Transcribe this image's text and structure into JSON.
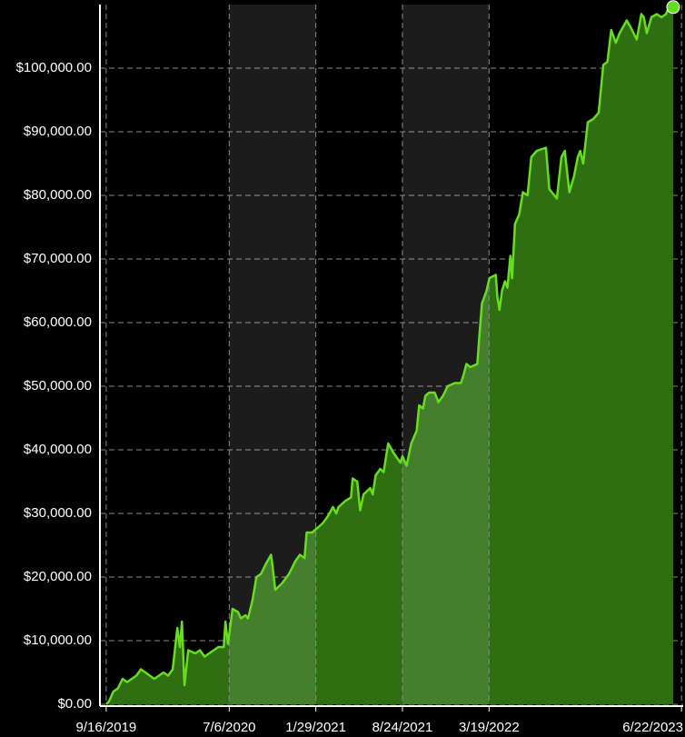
{
  "chart_data": {
    "type": "area",
    "x": [
      "9/16/2019",
      "9/23/2019",
      "10/3/2019",
      "10/14/2019",
      "10/25/2019",
      "11/5/2019",
      "11/16/2019",
      "11/27/2019",
      "12/8/2019",
      "12/19/2019",
      "12/29/2019",
      "1/9/2020",
      "1/20/2020",
      "1/31/2020",
      "2/11/2020",
      "2/22/2020",
      "3/4/2020",
      "3/10/2020",
      "3/15/2020",
      "3/21/2020",
      "3/30/2020",
      "4/16/2020",
      "4/27/2020",
      "5/8/2020",
      "5/19/2020",
      "6/10/2020",
      "6/23/2020",
      "6/27/2020",
      "7/3/2020",
      "7/14/2020",
      "7/27/2020",
      "8/3/2020",
      "8/14/2020",
      "8/20/2020",
      "8/31/2020",
      "9/9/2020",
      "9/20/2020",
      "10/1/2020",
      "10/14/2020",
      "10/18/2020",
      "10/24/2020",
      "11/9/2020",
      "11/26/2020",
      "12/11/2020",
      "12/22/2020",
      "1/2/2021",
      "1/7/2021",
      "1/20/2021",
      "1/29/2021",
      "2/15/2021",
      "2/26/2021",
      "3/11/2021",
      "3/19/2021",
      "3/24/2021",
      "4/10/2021",
      "4/23/2021",
      "4/27/2021",
      "5/8/2021",
      "5/15/2021",
      "5/23/2021",
      "6/8/2021",
      "6/14/2021",
      "6/21/2021",
      "7/2/2021",
      "7/10/2021",
      "7/21/2021",
      "8/3/2021",
      "8/19/2021",
      "8/24/2021",
      "9/3/2021",
      "9/14/2021",
      "9/27/2021",
      "10/3/2021",
      "10/12/2021",
      "10/18/2021",
      "10/27/2021",
      "11/9/2021",
      "11/18/2021",
      "11/29/2021",
      "12/10/2021",
      "12/27/2021",
      "1/11/2022",
      "1/18/2022",
      "1/24/2022",
      "2/2/2022",
      "2/19/2022",
      "2/24/2022",
      "3/2/2022",
      "3/13/2022",
      "3/20/2022",
      "4/4/2022",
      "4/8/2022",
      "4/13/2022",
      "4/19/2022",
      "4/26/2022",
      "5/2/2022",
      "5/9/2022",
      "5/13/2022",
      "5/20/2022",
      "5/30/2022",
      "6/8/2022",
      "6/19/2022",
      "6/28/2022",
      "7/11/2022",
      "8/2/2022",
      "8/10/2022",
      "8/28/2022",
      "9/8/2022",
      "9/16/2022",
      "9/27/2022",
      "10/8/2022",
      "10/17/2022",
      "10/23/2022",
      "10/30/2022",
      "11/10/2022",
      "11/23/2022",
      "12/6/2022",
      "12/17/2022",
      "12/27/2022",
      "1/5/2023",
      "1/16/2023",
      "1/25/2023",
      "2/11/2023",
      "2/20/2023",
      "3/7/2023",
      "3/18/2023",
      "3/24/2023",
      "3/31/2023",
      "4/11/2023",
      "4/24/2023",
      "5/5/2023",
      "5/16/2023",
      "5/22/2023",
      "6/2/2023"
    ],
    "values": [
      0,
      500,
      2000,
      2500,
      4000,
      3500,
      4000,
      4500,
      5500,
      5000,
      4500,
      4000,
      4500,
      5000,
      4500,
      5500,
      12000,
      9000,
      13000,
      3000,
      8500,
      8000,
      8500,
      7500,
      8000,
      9000,
      9000,
      13000,
      9500,
      15000,
      14500,
      13500,
      14000,
      13500,
      16500,
      20000,
      20500,
      22000,
      23500,
      21500,
      18000,
      19000,
      20500,
      22500,
      23500,
      23000,
      27000,
      27000,
      27500,
      28500,
      29500,
      31000,
      30000,
      31000,
      32000,
      32500,
      35500,
      35000,
      30500,
      33000,
      34000,
      33000,
      36000,
      37000,
      36500,
      41000,
      39500,
      38000,
      39000,
      37500,
      41000,
      43000,
      47000,
      46500,
      48500,
      49000,
      49000,
      47500,
      48500,
      50000,
      50500,
      50500,
      52000,
      53500,
      53000,
      53500,
      58000,
      63000,
      65000,
      67000,
      67500,
      64000,
      62000,
      65000,
      66500,
      65500,
      70500,
      67000,
      75500,
      77000,
      80500,
      80000,
      86000,
      87000,
      87500,
      81000,
      79500,
      86000,
      87000,
      80500,
      83000,
      86000,
      87000,
      85000,
      91500,
      92000,
      93000,
      100500,
      101000,
      106000,
      104000,
      105500,
      107500,
      106500,
      104500,
      108500,
      108000,
      105500,
      108000,
      108500,
      108000,
      108500,
      109500,
      109600
    ],
    "color": "#66dd22",
    "fill": "#2f6f12",
    "band_color": "rgba(255,255,255,0.11)",
    "xlim": [
      "9/1/2019",
      "6/26/2023"
    ],
    "xticks": [
      "9/16/2019",
      "7/6/2020",
      "1/29/2021",
      "8/24/2021",
      "3/19/2022",
      "6/22/2023"
    ],
    "ylim": [
      0,
      110000
    ],
    "yticks": [
      {
        "value": 0,
        "label": "$0.00"
      },
      {
        "value": 10000,
        "label": "$10,000.00"
      },
      {
        "value": 20000,
        "label": "$20,000.00"
      },
      {
        "value": 30000,
        "label": "$30,000.00"
      },
      {
        "value": 40000,
        "label": "$40,000.00"
      },
      {
        "value": 50000,
        "label": "$50,000.00"
      },
      {
        "value": 60000,
        "label": "$60,000.00"
      },
      {
        "value": 70000,
        "label": "$70,000.00"
      },
      {
        "value": 80000,
        "label": "$80,000.00"
      },
      {
        "value": 90000,
        "label": "$90,000.00"
      },
      {
        "value": 100000,
        "label": "$100,000.00"
      }
    ],
    "grid": true
  }
}
